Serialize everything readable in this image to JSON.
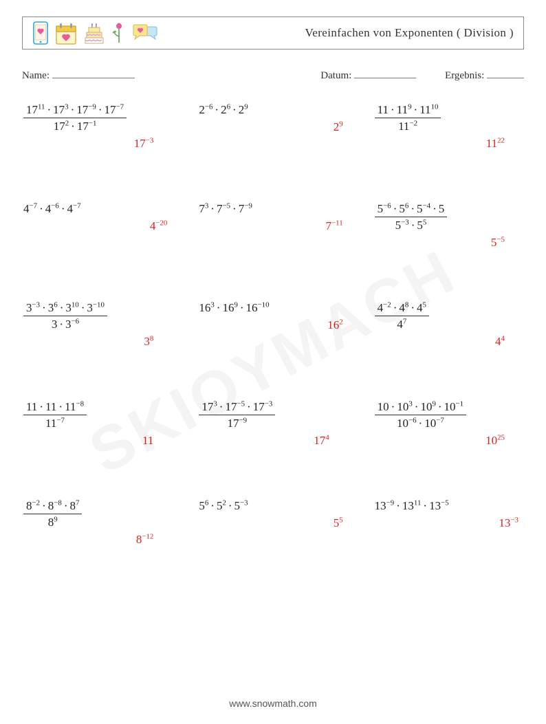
{
  "title": "Vereinfachen von Exponenten ( Division )",
  "meta": {
    "name_label": "Name:",
    "date_label": "Datum:",
    "result_label": "Ergebnis:"
  },
  "colors": {
    "text": "#333333",
    "answer": "#e02020",
    "border": "#888888",
    "watermark": "rgba(0,0,0,0.045)"
  },
  "problems": [
    {
      "numerator": [
        {
          "b": "17",
          "e": "11"
        },
        {
          "b": "17",
          "e": "3"
        },
        {
          "b": "17",
          "e": "−9"
        },
        {
          "b": "17",
          "e": "−7"
        }
      ],
      "denominator": [
        {
          "b": "17",
          "e": "2"
        },
        {
          "b": "17",
          "e": "−1"
        }
      ],
      "answer": {
        "b": "17",
        "e": "−3"
      }
    },
    {
      "numerator": [
        {
          "b": "2",
          "e": "−6"
        },
        {
          "b": "2",
          "e": "6"
        },
        {
          "b": "2",
          "e": "9"
        }
      ],
      "denominator": null,
      "answer": {
        "b": "2",
        "e": "9"
      }
    },
    {
      "numerator": [
        {
          "b": "11",
          "e": ""
        },
        {
          "b": "11",
          "e": "9"
        },
        {
          "b": "11",
          "e": "10"
        }
      ],
      "denominator": [
        {
          "b": "11",
          "e": "−2"
        }
      ],
      "answer": {
        "b": "11",
        "e": "22"
      }
    },
    {
      "numerator": [
        {
          "b": "4",
          "e": "−7"
        },
        {
          "b": "4",
          "e": "−6"
        },
        {
          "b": "4",
          "e": "−7"
        }
      ],
      "denominator": null,
      "answer": {
        "b": "4",
        "e": "−20"
      }
    },
    {
      "numerator": [
        {
          "b": "7",
          "e": "3"
        },
        {
          "b": "7",
          "e": "−5"
        },
        {
          "b": "7",
          "e": "−9"
        }
      ],
      "denominator": null,
      "answer": {
        "b": "7",
        "e": "−11"
      }
    },
    {
      "numerator": [
        {
          "b": "5",
          "e": "−6"
        },
        {
          "b": "5",
          "e": "6"
        },
        {
          "b": "5",
          "e": "−4"
        },
        {
          "b": "5",
          "e": ""
        }
      ],
      "denominator": [
        {
          "b": "5",
          "e": "−3"
        },
        {
          "b": "5",
          "e": "5"
        }
      ],
      "answer": {
        "b": "5",
        "e": "−5"
      }
    },
    {
      "numerator": [
        {
          "b": "3",
          "e": "−3"
        },
        {
          "b": "3",
          "e": "6"
        },
        {
          "b": "3",
          "e": "10"
        },
        {
          "b": "3",
          "e": "−10"
        }
      ],
      "denominator": [
        {
          "b": "3",
          "e": ""
        },
        {
          "b": "3",
          "e": "−6"
        }
      ],
      "answer": {
        "b": "3",
        "e": "8"
      }
    },
    {
      "numerator": [
        {
          "b": "16",
          "e": "3"
        },
        {
          "b": "16",
          "e": "9"
        },
        {
          "b": "16",
          "e": "−10"
        }
      ],
      "denominator": null,
      "answer": {
        "b": "16",
        "e": "2"
      }
    },
    {
      "numerator": [
        {
          "b": "4",
          "e": "−2"
        },
        {
          "b": "4",
          "e": "8"
        },
        {
          "b": "4",
          "e": "5"
        }
      ],
      "denominator": [
        {
          "b": "4",
          "e": "7"
        }
      ],
      "answer": {
        "b": "4",
        "e": "4"
      }
    },
    {
      "numerator": [
        {
          "b": "11",
          "e": ""
        },
        {
          "b": "11",
          "e": ""
        },
        {
          "b": "11",
          "e": "−8"
        }
      ],
      "denominator": [
        {
          "b": "11",
          "e": "−7"
        }
      ],
      "answer": {
        "b": "11",
        "e": ""
      }
    },
    {
      "numerator": [
        {
          "b": "17",
          "e": "3"
        },
        {
          "b": "17",
          "e": "−5"
        },
        {
          "b": "17",
          "e": "−3"
        }
      ],
      "denominator": [
        {
          "b": "17",
          "e": "−9"
        }
      ],
      "answer": {
        "b": "17",
        "e": "4"
      }
    },
    {
      "numerator": [
        {
          "b": "10",
          "e": ""
        },
        {
          "b": "10",
          "e": "3"
        },
        {
          "b": "10",
          "e": "9"
        },
        {
          "b": "10",
          "e": "−1"
        }
      ],
      "denominator": [
        {
          "b": "10",
          "e": "−6"
        },
        {
          "b": "10",
          "e": "−7"
        }
      ],
      "answer": {
        "b": "10",
        "e": "25"
      }
    },
    {
      "numerator": [
        {
          "b": "8",
          "e": "−2"
        },
        {
          "b": "8",
          "e": "−8"
        },
        {
          "b": "8",
          "e": "7"
        }
      ],
      "denominator": [
        {
          "b": "8",
          "e": "9"
        }
      ],
      "answer": {
        "b": "8",
        "e": "−12"
      }
    },
    {
      "numerator": [
        {
          "b": "5",
          "e": "6"
        },
        {
          "b": "5",
          "e": "2"
        },
        {
          "b": "5",
          "e": "−3"
        }
      ],
      "denominator": null,
      "answer": {
        "b": "5",
        "e": "5"
      }
    },
    {
      "numerator": [
        {
          "b": "13",
          "e": "−9"
        },
        {
          "b": "13",
          "e": "11"
        },
        {
          "b": "13",
          "e": "−5"
        }
      ],
      "denominator": null,
      "answer": {
        "b": "13",
        "e": "−3"
      }
    }
  ],
  "watermark": "SKIOYMACH",
  "footer": "www.snowmath.com"
}
